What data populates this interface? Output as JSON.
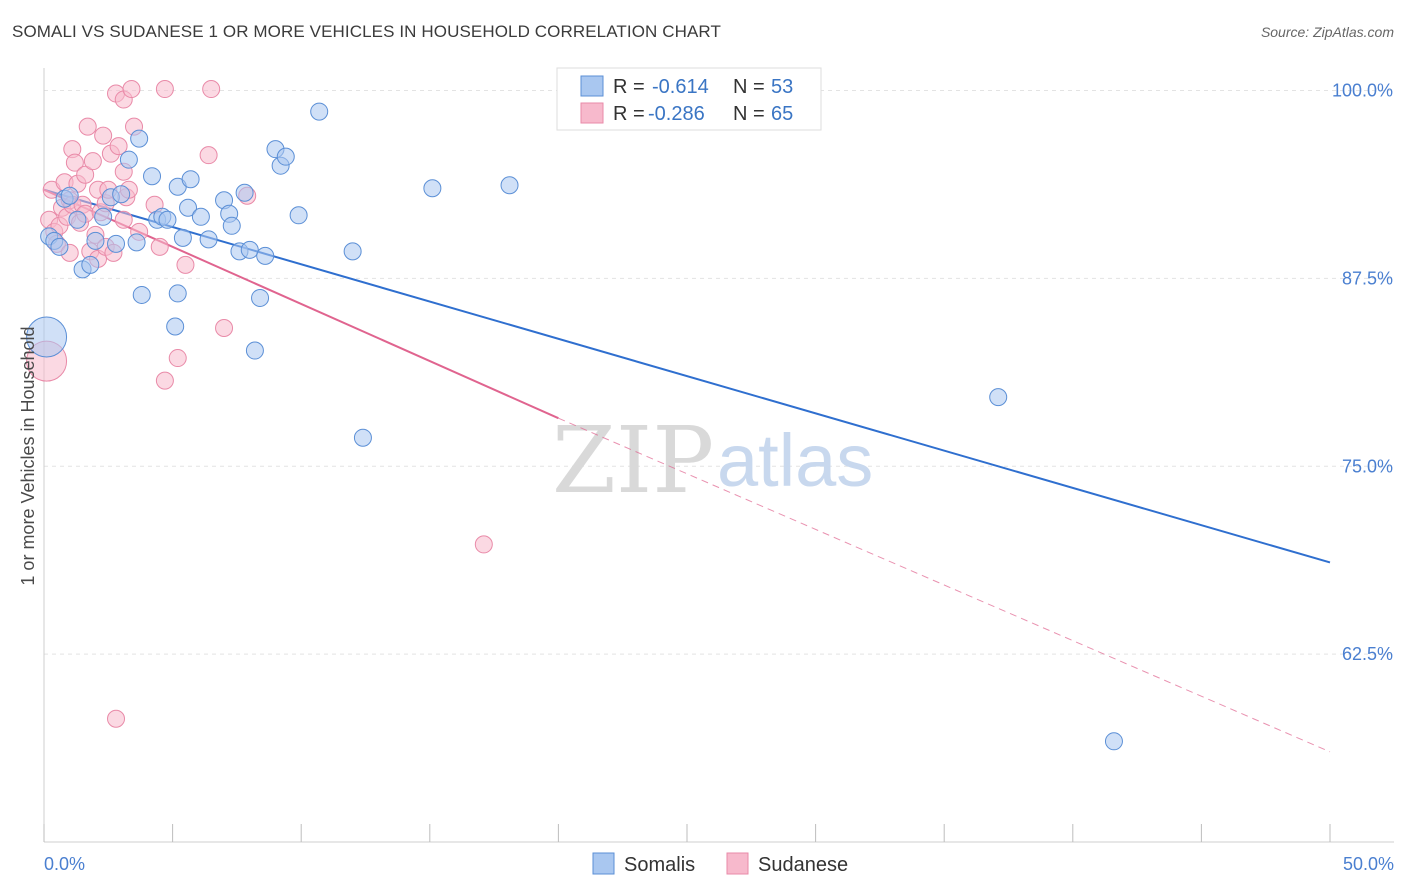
{
  "header": {
    "title": "SOMALI VS SUDANESE 1 OR MORE VEHICLES IN HOUSEHOLD CORRELATION CHART",
    "source": "Source: ZipAtlas.com"
  },
  "legend": {
    "r_label": "R =",
    "n_label": "N =",
    "somalis": {
      "r": "-0.614",
      "n": "53"
    },
    "sudanese": {
      "r": "-0.286",
      "n": "65"
    }
  },
  "bottom_legend": {
    "somalis": "Somalis",
    "sudanese": "Sudanese"
  },
  "watermark": {
    "zip": "ZIP",
    "atlas": "atlas"
  },
  "colors": {
    "somalis_fill": "#a9c7f0",
    "somalis_stroke": "#5b8fd6",
    "somalis_line": "#2f6fcf",
    "sudanese_fill": "#f7b9cc",
    "sudanese_stroke": "#e98aa8",
    "sudanese_line": "#e0648f",
    "tick_text": "#4a7fd0",
    "grid": "#e3e3e3"
  },
  "chart_data": {
    "type": "scatter",
    "title": "SOMALI VS SUDANESE 1 OR MORE VEHICLES IN HOUSEHOLD CORRELATION CHART",
    "ylabel": "1 or more Vehicles in Household",
    "xlabel": "",
    "xlim": [
      0,
      50
    ],
    "ylim": [
      50,
      101.5
    ],
    "x_tick_labels": [
      "0.0%",
      "50.0%"
    ],
    "y_ticks": [
      100,
      87.5,
      75,
      62.5
    ],
    "y_tick_labels": [
      "100.0%",
      "87.5%",
      "75.0%",
      "62.5%"
    ],
    "grid": true,
    "legend_position": "top-center",
    "series": [
      {
        "name": "Somalis",
        "r": -0.614,
        "n": 53,
        "trend": {
          "x": [
            0,
            50
          ],
          "y": [
            93.4,
            68.6
          ]
        },
        "points": [
          [
            0.2,
            90.3
          ],
          [
            0.4,
            90.0
          ],
          [
            0.6,
            89.6
          ],
          [
            0.8,
            92.8
          ],
          [
            1.0,
            93.0
          ],
          [
            1.3,
            91.4
          ],
          [
            1.5,
            88.1
          ],
          [
            1.8,
            88.4
          ],
          [
            2.0,
            90.0
          ],
          [
            2.3,
            91.6
          ],
          [
            2.6,
            92.9
          ],
          [
            2.8,
            89.8
          ],
          [
            3.0,
            93.1
          ],
          [
            3.3,
            95.4
          ],
          [
            3.6,
            89.9
          ],
          [
            3.7,
            96.8
          ],
          [
            3.8,
            86.4
          ],
          [
            4.2,
            94.3
          ],
          [
            4.4,
            91.4
          ],
          [
            4.6,
            91.6
          ],
          [
            4.8,
            91.4
          ],
          [
            5.1,
            84.3
          ],
          [
            5.2,
            86.5
          ],
          [
            5.2,
            93.6
          ],
          [
            5.4,
            90.2
          ],
          [
            5.6,
            92.2
          ],
          [
            5.7,
            94.1
          ],
          [
            6.1,
            91.6
          ],
          [
            6.4,
            90.1
          ],
          [
            7.0,
            92.7
          ],
          [
            7.2,
            91.8
          ],
          [
            7.3,
            91.0
          ],
          [
            7.6,
            89.3
          ],
          [
            7.8,
            93.2
          ],
          [
            8.0,
            89.4
          ],
          [
            8.2,
            82.7
          ],
          [
            8.4,
            86.2
          ],
          [
            8.6,
            89.0
          ],
          [
            9.0,
            96.1
          ],
          [
            9.2,
            95.0
          ],
          [
            9.4,
            95.6
          ],
          [
            9.9,
            91.7
          ],
          [
            10.7,
            98.6
          ],
          [
            12.0,
            89.3
          ],
          [
            12.4,
            76.9
          ],
          [
            15.1,
            93.5
          ],
          [
            18.1,
            93.7
          ],
          [
            37.1,
            79.6
          ],
          [
            41.6,
            56.7
          ]
        ],
        "large_point": [
          0.1,
          83.6
        ]
      },
      {
        "name": "Sudanese",
        "r": -0.286,
        "n": 65,
        "trend": {
          "x": [
            0,
            20
          ],
          "y": [
            93.4,
            78.2
          ]
        },
        "trend_dashed": {
          "x": [
            20,
            50
          ],
          "y": [
            78.2,
            56.0
          ]
        },
        "points": [
          [
            0.2,
            91.4
          ],
          [
            0.3,
            93.4
          ],
          [
            0.4,
            90.6
          ],
          [
            0.5,
            89.8
          ],
          [
            0.6,
            91.0
          ],
          [
            0.7,
            92.2
          ],
          [
            0.8,
            93.9
          ],
          [
            0.9,
            91.6
          ],
          [
            1.0,
            89.2
          ],
          [
            1.0,
            92.7
          ],
          [
            1.1,
            96.1
          ],
          [
            1.1,
            92.4
          ],
          [
            1.2,
            95.2
          ],
          [
            1.3,
            93.8
          ],
          [
            1.4,
            91.2
          ],
          [
            1.5,
            92.4
          ],
          [
            1.6,
            91.8
          ],
          [
            1.6,
            94.4
          ],
          [
            1.7,
            97.6
          ],
          [
            1.8,
            89.3
          ],
          [
            1.9,
            95.3
          ],
          [
            2.0,
            90.4
          ],
          [
            2.1,
            88.8
          ],
          [
            2.1,
            93.4
          ],
          [
            2.2,
            91.9
          ],
          [
            2.3,
            97.0
          ],
          [
            2.4,
            89.6
          ],
          [
            2.4,
            92.5
          ],
          [
            2.5,
            93.4
          ],
          [
            2.6,
            95.8
          ],
          [
            2.7,
            89.2
          ],
          [
            2.8,
            99.8
          ],
          [
            2.9,
            96.3
          ],
          [
            3.1,
            91.4
          ],
          [
            3.1,
            94.6
          ],
          [
            3.1,
            99.4
          ],
          [
            3.2,
            92.9
          ],
          [
            3.3,
            93.4
          ],
          [
            3.4,
            100.1
          ],
          [
            3.5,
            97.6
          ],
          [
            3.7,
            90.6
          ],
          [
            4.3,
            92.4
          ],
          [
            4.5,
            89.6
          ],
          [
            4.7,
            100.1
          ],
          [
            4.7,
            80.7
          ],
          [
            5.2,
            82.2
          ],
          [
            5.5,
            88.4
          ],
          [
            6.4,
            95.7
          ],
          [
            6.5,
            100.1
          ],
          [
            7.0,
            84.2
          ],
          [
            7.9,
            93.0
          ],
          [
            2.8,
            58.2
          ],
          [
            17.1,
            69.8
          ]
        ],
        "large_point": [
          0.1,
          82.0
        ]
      }
    ]
  }
}
